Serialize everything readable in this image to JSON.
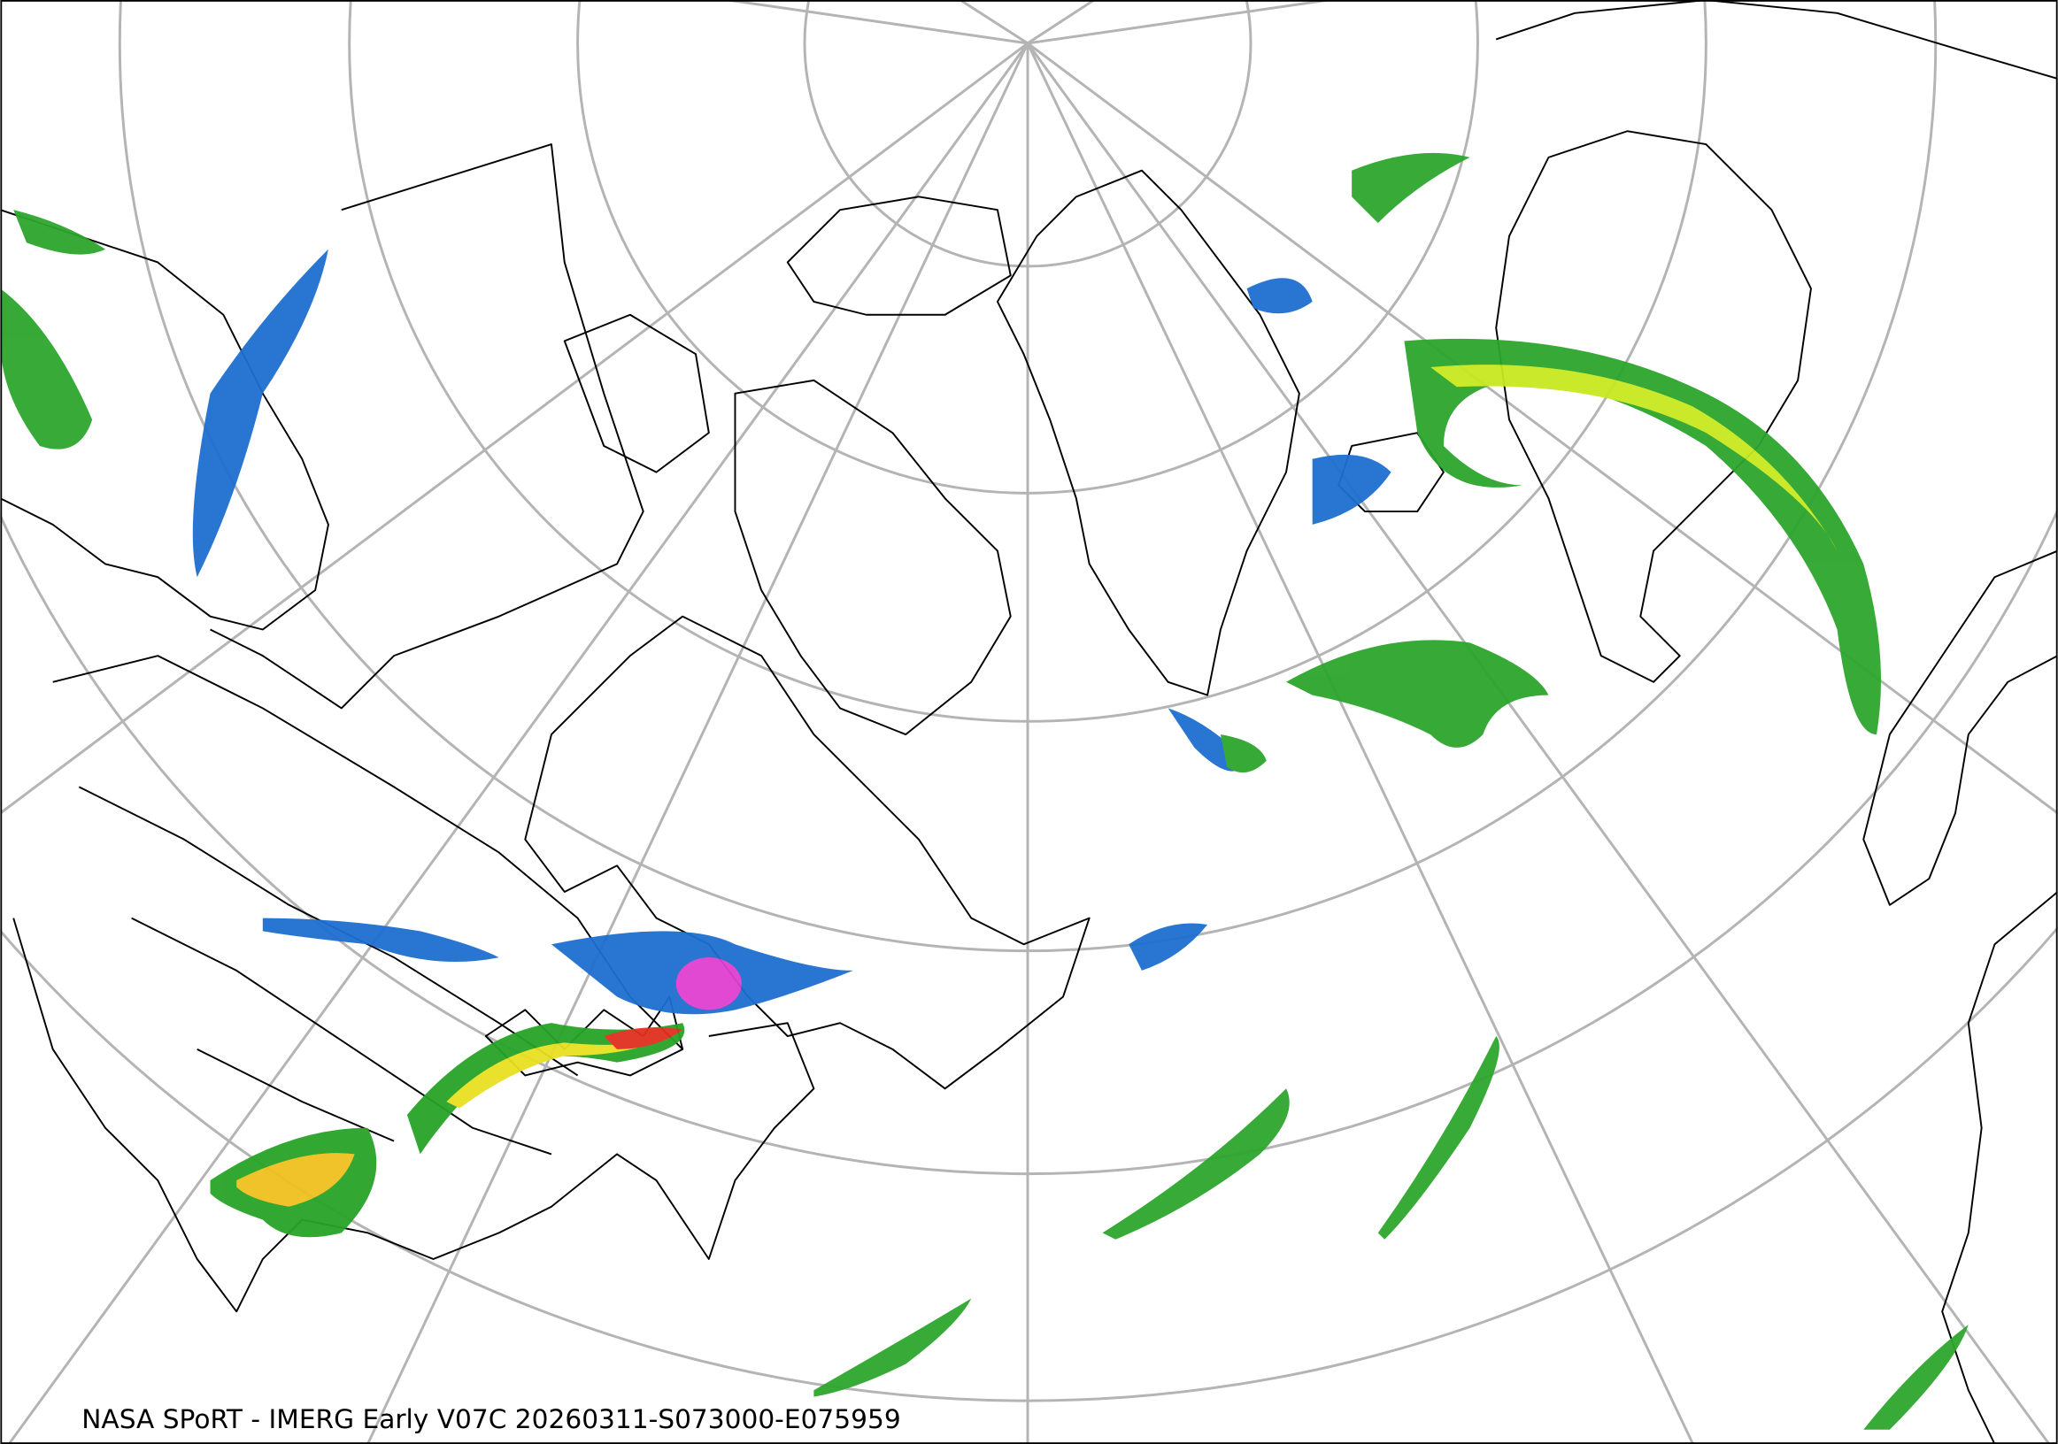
{
  "caption": {
    "text": "NASA SPoRT - IMERG Early V07C 20260311-S073000-E075959"
  }
}
